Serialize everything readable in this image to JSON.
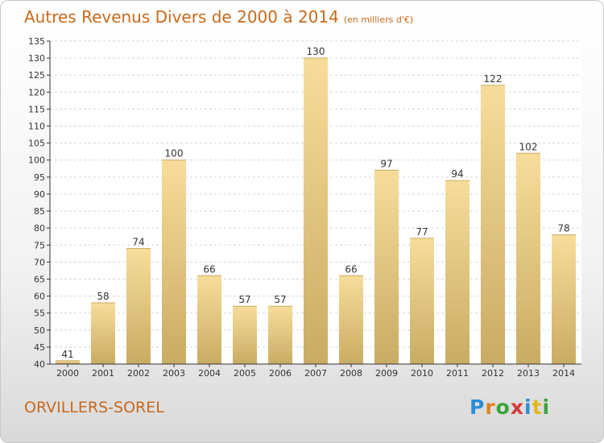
{
  "header": {
    "title": "Autres Revenus Divers de 2000 à 2014",
    "subtitle": "(en milliers d'€)"
  },
  "footer": {
    "commune": "ORVILLERS-SOREL",
    "logo_letters": [
      "P",
      "r",
      "o",
      "x",
      "i",
      "t",
      "i"
    ]
  },
  "colors": {
    "title": "#c8691c",
    "bar_light": "#f7dd9a",
    "bar_dark": "#c9ac63"
  },
  "chart_data": {
    "type": "bar",
    "categories": [
      "2000",
      "2001",
      "2002",
      "2003",
      "2004",
      "2005",
      "2006",
      "2007",
      "2008",
      "2009",
      "2010",
      "2011",
      "2012",
      "2013",
      "2014"
    ],
    "values": [
      41,
      58,
      74,
      100,
      66,
      57,
      57,
      130,
      66,
      97,
      77,
      94,
      122,
      102,
      78
    ],
    "labels": [
      "41",
      "58",
      "74",
      "100",
      "66",
      "57",
      "57",
      "130",
      "66",
      "97",
      "77",
      "94",
      "122",
      "102",
      "78"
    ],
    "ylim": [
      40,
      135
    ],
    "yticks": [
      40,
      45,
      50,
      55,
      60,
      65,
      70,
      75,
      80,
      85,
      90,
      95,
      100,
      105,
      110,
      115,
      120,
      125,
      130,
      135
    ],
    "grid": true,
    "legend": "none"
  }
}
